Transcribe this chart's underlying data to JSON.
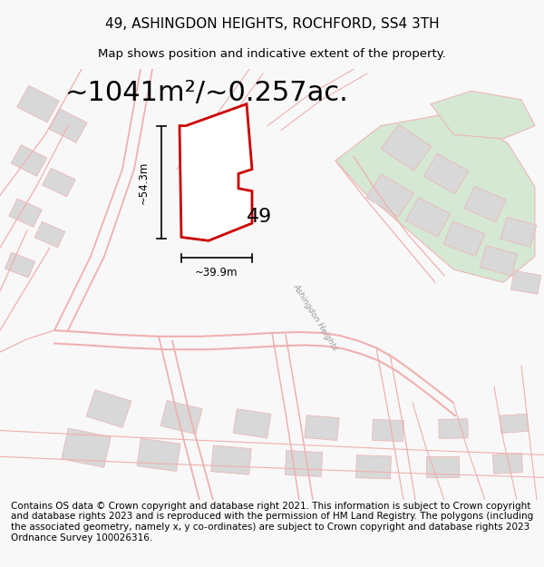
{
  "title": "49, ASHINGDON HEIGHTS, ROCHFORD, SS4 3TH",
  "subtitle": "Map shows position and indicative extent of the property.",
  "area_text": "~1041m²/~0.257ac.",
  "label_49": "49",
  "dim_height": "~54.3m",
  "dim_width": "~39.9m",
  "street_label": "Ashingdon Heights",
  "footer_text": "Contains OS data © Crown copyright and database right 2021. This information is subject to Crown copyright and database rights 2023 and is reproduced with the permission of HM Land Registry. The polygons (including the associated geometry, namely x, y co-ordinates) are subject to Crown copyright and database rights 2023 Ordnance Survey 100026316.",
  "bg_color": "#f8f8f8",
  "map_bg": "#ffffff",
  "plot_outline_color": "#cc0000",
  "road_color": "#f0b0b0",
  "building_color": "#d8d8d8",
  "green_area_color": "#d4e8d4",
  "title_fontsize": 11,
  "subtitle_fontsize": 9.5,
  "area_fontsize": 22,
  "footer_fontsize": 7.5
}
